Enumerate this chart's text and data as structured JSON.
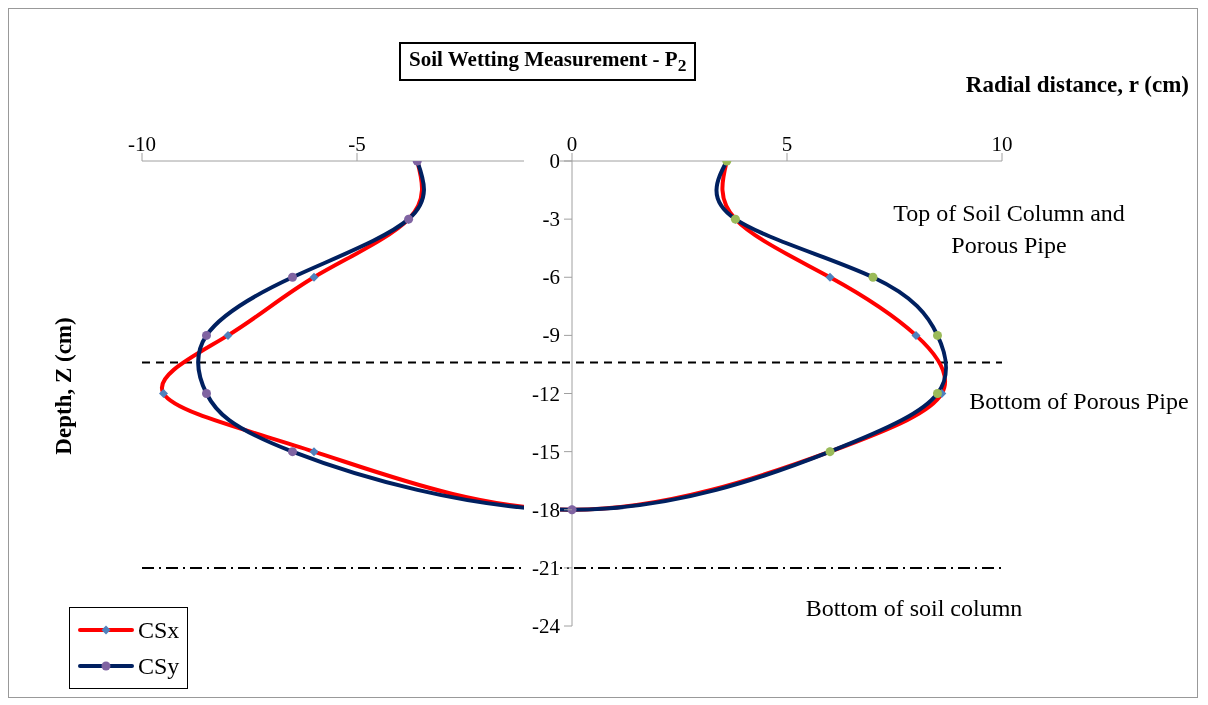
{
  "chart_data": {
    "type": "line",
    "title": "Soil Wetting Measurement - P$_{2}$",
    "xlabel": "Radial distance, r (cm)",
    "ylabel": "Depth, Z (cm)",
    "xlim": [
      -10,
      10
    ],
    "xticks": [
      -10,
      -5,
      0,
      5,
      10
    ],
    "ylim": [
      -24,
      0
    ],
    "yticks": [
      0,
      -3,
      -6,
      -9,
      -12,
      -15,
      -18,
      -21,
      -24
    ],
    "grid": false,
    "legend": "bottom left",
    "line_style": "solid",
    "series": [
      {
        "name": "CSx",
        "color": "#ff0000",
        "marker": "diamond",
        "x": [
          -3.6,
          -3.8,
          -6,
          -8,
          -9.5,
          -6,
          0,
          6,
          8.6,
          8,
          6,
          3.8,
          3.6
        ],
        "values": [
          0,
          -3,
          -6,
          -9,
          -12,
          -15,
          -18,
          -15,
          -12,
          -9,
          -6,
          -3,
          0
        ],
        "colors": [
          "#4f81bd",
          "#4f81bd",
          "#4f81bd",
          "#4f81bd",
          "#4f81bd",
          "#4f81bd",
          "#4f81bd",
          "#4f81bd",
          "#4f81bd",
          "#4f81bd",
          "#4f81bd",
          "#4f81bd",
          "#4f81bd"
        ]
      },
      {
        "name": "CSy",
        "color": "#002060",
        "marker": "circle",
        "x": [
          -3.6,
          -3.8,
          -6.5,
          -8.5,
          -8.5,
          -6.5,
          0,
          6,
          8.5,
          8.5,
          7,
          3.8,
          3.6
        ],
        "values": [
          0,
          -3,
          -6,
          -9,
          -12,
          -15,
          -18,
          -15,
          -12,
          -9,
          -6,
          -3,
          0
        ],
        "colors": [
          "#8064a2",
          "#8064a2",
          "#8064a2",
          "#8064a2",
          "#8064a2",
          "#8064a2",
          "#8064a2",
          "#9bbb59",
          "#9bbb59",
          "#9bbb59",
          "#9bbb59",
          "#9bbb59",
          "#9bbb59"
        ]
      }
    ],
    "ref_lines": [
      {
        "axis": "y",
        "value": -10.4,
        "label": "Bottom of Porous Pipe",
        "color": "#000000",
        "line_style": "dashed"
      },
      {
        "axis": "y",
        "value": -21,
        "label": "Bottom of soil column",
        "color": "#000000",
        "line_style": "dashdot"
      }
    ],
    "annotations": [
      "Top of Soil Column and Porous Pipe"
    ]
  }
}
